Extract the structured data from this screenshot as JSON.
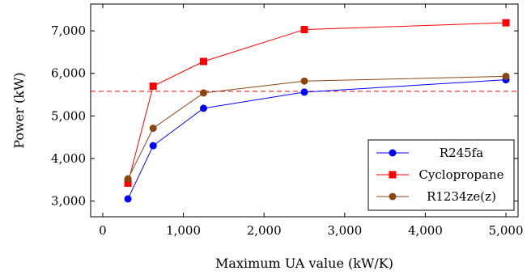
{
  "chart_data": {
    "type": "line",
    "xlabel": "Maximum UA value (kW/K)",
    "ylabel": "Power (kW)",
    "xlim": [
      -150,
      5150
    ],
    "ylim": [
      2630,
      7630
    ],
    "xticks": [
      0,
      1000,
      2000,
      3000,
      4000,
      5000
    ],
    "xtick_labels": [
      "0",
      "1,000",
      "2,000",
      "3,000",
      "4,000",
      "5,000"
    ],
    "yticks": [
      3000,
      4000,
      5000,
      6000,
      7000
    ],
    "ytick_labels": [
      "3,000",
      "4,000",
      "5,000",
      "6,000",
      "7,000"
    ],
    "grid": false,
    "legend_position": "right",
    "x": [
      312.5,
      625,
      1250,
      2500,
      5000
    ],
    "series": [
      {
        "name": "R245fa",
        "values": [
          3050,
          4300,
          5180,
          5560,
          5850
        ],
        "color": "#0000ff",
        "marker": "circle"
      },
      {
        "name": "Cyclopropane",
        "values": [
          3420,
          5700,
          6280,
          7030,
          7190
        ],
        "color": "#ff0000",
        "marker": "square"
      },
      {
        "name": "R1234ze(z)",
        "values": [
          3520,
          4710,
          5540,
          5820,
          5930
        ],
        "color": "#8b4513",
        "marker": "circle"
      }
    ],
    "reference_line": {
      "y": 5580,
      "color": "#dd0000",
      "style": "dashed"
    }
  }
}
